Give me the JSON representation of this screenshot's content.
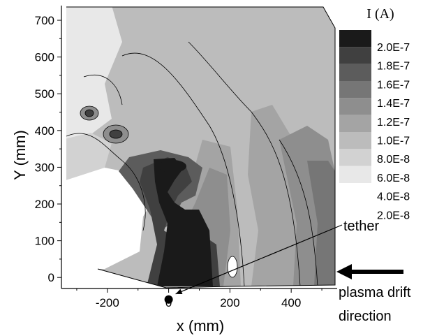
{
  "chart_data": {
    "type": "heatmap",
    "title": "",
    "xlabel": "x (mm)",
    "ylabel": "Y (mm)",
    "xlim": [
      -350,
      550
    ],
    "ylim": [
      -30,
      740
    ],
    "x_ticks": [
      -200,
      0,
      200,
      400
    ],
    "x_tick_labels": [
      "-200",
      "0",
      "200",
      "400"
    ],
    "y_ticks": [
      0,
      100,
      200,
      300,
      400,
      500,
      600,
      700
    ],
    "y_tick_labels": [
      "0",
      "100",
      "200",
      "300",
      "400",
      "500",
      "600",
      "700"
    ],
    "colorbar": {
      "title": "I (A)",
      "levels": [
        2e-08,
        4e-08,
        6e-08,
        8e-08,
        1e-07,
        1.2e-07,
        1.4e-07,
        1.6e-07,
        1.8e-07,
        2e-07
      ],
      "level_labels": [
        "2.0E-8",
        "4.0E-8",
        "6.0E-8",
        "8.0E-8",
        "1.0E-7",
        "1.2E-7",
        "1.4E-7",
        "1.6E-7",
        "1.8E-7",
        "2.0E-7"
      ],
      "colors": [
        "#ffffff",
        "#e8e8e8",
        "#d2d2d2",
        "#bcbcbc",
        "#a4a4a4",
        "#8e8e8e",
        "#767676",
        "#5c5c5c",
        "#404040",
        "#1a1a1a"
      ]
    },
    "annotations": {
      "tether_label": "tether",
      "tether_point": [
        0,
        -60
      ],
      "drift_line1": "plasma drift",
      "drift_line2": "direction"
    },
    "grid": false
  }
}
